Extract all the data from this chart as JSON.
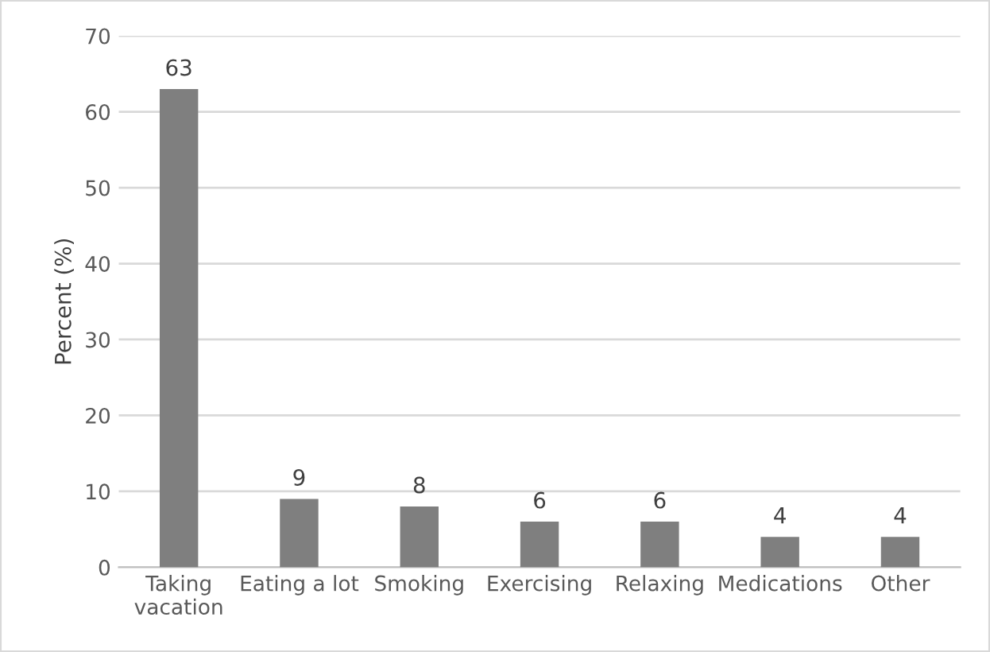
{
  "chart_data": {
    "type": "bar",
    "ylabel": "Percent (%)",
    "categories": [
      "Taking vacation",
      "Eating a lot",
      "Smoking",
      "Exercising",
      "Relaxing",
      "Medications",
      "Other"
    ],
    "values": [
      63,
      9,
      8,
      6,
      6,
      4,
      4
    ],
    "color": "#7f7f7f",
    "ylim": [
      0,
      70
    ],
    "yticks": [
      0,
      10,
      20,
      30,
      40,
      50,
      60,
      70
    ],
    "grid": "y",
    "data_labels": true
  }
}
